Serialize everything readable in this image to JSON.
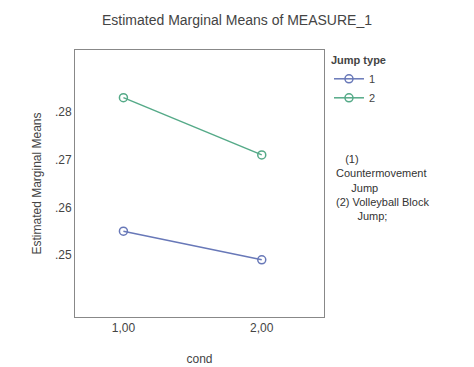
{
  "chart_data": {
    "type": "line",
    "title": "Estimated Marginal Means of MEASURE_1",
    "x_label": "cond",
    "y_label": "Estimated Marginal Means",
    "x": [
      1.0,
      2.0
    ],
    "series": [
      {
        "name": "1",
        "color": "#6878b8",
        "values": [
          0.255,
          0.249
        ]
      },
      {
        "name": "2",
        "color": "#55aa88",
        "values": [
          0.283,
          0.271
        ]
      }
    ],
    "xlim": [
      0.65,
      2.45
    ],
    "xticks": [
      {
        "value": 1.0,
        "label": "1,00"
      },
      {
        "value": 2.0,
        "label": "2,00"
      }
    ],
    "ylim": [
      0.237,
      0.293
    ],
    "yticks": [
      {
        "value": 0.25,
        "label": ".25"
      },
      {
        "value": 0.26,
        "label": ".26"
      },
      {
        "value": 0.27,
        "label": ".27"
      },
      {
        "value": 0.28,
        "label": ".28"
      }
    ],
    "legend_title": "Jump type",
    "legend": "right",
    "annotations": [
      "   (1)\nCountermovement\n     Jump\n(2) Volleyball Block\n       Jump;"
    ],
    "marker": "circle-open",
    "grid": false
  }
}
